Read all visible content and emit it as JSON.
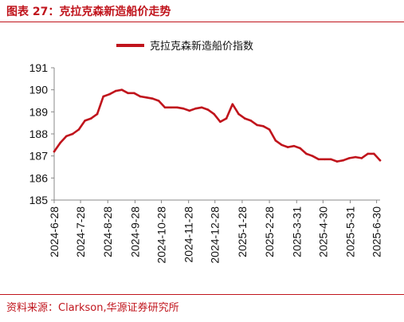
{
  "figure_title": "图表 27：克拉克森新造船价走势",
  "source_note": "资料来源：Clarkson,华源证券研究所",
  "colors": {
    "accent": "#c0141c",
    "series": "#c0141c",
    "axis": "#888888",
    "text": "#111111"
  },
  "chart_data": {
    "type": "line",
    "title": "",
    "xlabel": "",
    "ylabel": "",
    "ylim": [
      185,
      191
    ],
    "yticks": [
      185,
      186,
      187,
      188,
      189,
      190,
      191
    ],
    "xlim": [
      "2024-06-28",
      "2025-07-04"
    ],
    "xticks": [
      "2024-6-28",
      "2024-7-28",
      "2024-8-28",
      "2024-9-28",
      "2024-10-28",
      "2024-11-28",
      "2024-12-28",
      "2025-1-28",
      "2025-2-28",
      "2025-3-31",
      "2025-4-30",
      "2025-5-31",
      "2025-6-30"
    ],
    "grid": false,
    "legend_position": "top-center",
    "series": [
      {
        "name": "克拉克森新造船价指数",
        "x": [
          "2024-06-28",
          "2024-07-05",
          "2024-07-12",
          "2024-07-19",
          "2024-07-26",
          "2024-08-02",
          "2024-08-09",
          "2024-08-16",
          "2024-08-23",
          "2024-08-30",
          "2024-09-06",
          "2024-09-13",
          "2024-09-20",
          "2024-09-27",
          "2024-10-04",
          "2024-10-11",
          "2024-10-18",
          "2024-10-25",
          "2024-11-01",
          "2024-11-08",
          "2024-11-15",
          "2024-11-22",
          "2024-11-29",
          "2024-12-06",
          "2024-12-13",
          "2024-12-20",
          "2024-12-27",
          "2025-01-03",
          "2025-01-10",
          "2025-01-17",
          "2025-01-24",
          "2025-01-31",
          "2025-02-07",
          "2025-02-14",
          "2025-02-21",
          "2025-02-28",
          "2025-03-07",
          "2025-03-14",
          "2025-03-21",
          "2025-03-28",
          "2025-04-04",
          "2025-04-11",
          "2025-04-18",
          "2025-04-25",
          "2025-05-02",
          "2025-05-09",
          "2025-05-16",
          "2025-05-23",
          "2025-05-30",
          "2025-06-06",
          "2025-06-13",
          "2025-06-20",
          "2025-06-27",
          "2025-07-04"
        ],
        "values": [
          187.2,
          187.6,
          187.9,
          188.0,
          188.2,
          188.6,
          188.7,
          188.9,
          189.7,
          189.8,
          189.95,
          190.0,
          189.85,
          189.85,
          189.7,
          189.65,
          189.6,
          189.5,
          189.2,
          189.2,
          189.2,
          189.15,
          189.05,
          189.15,
          189.2,
          189.1,
          188.9,
          188.55,
          188.7,
          189.35,
          188.9,
          188.7,
          188.6,
          188.4,
          188.35,
          188.2,
          187.7,
          187.5,
          187.4,
          187.45,
          187.35,
          187.1,
          187.0,
          186.85,
          186.85,
          186.85,
          186.75,
          186.8,
          186.9,
          186.95,
          186.9,
          187.1,
          187.1,
          186.8
        ]
      }
    ]
  }
}
